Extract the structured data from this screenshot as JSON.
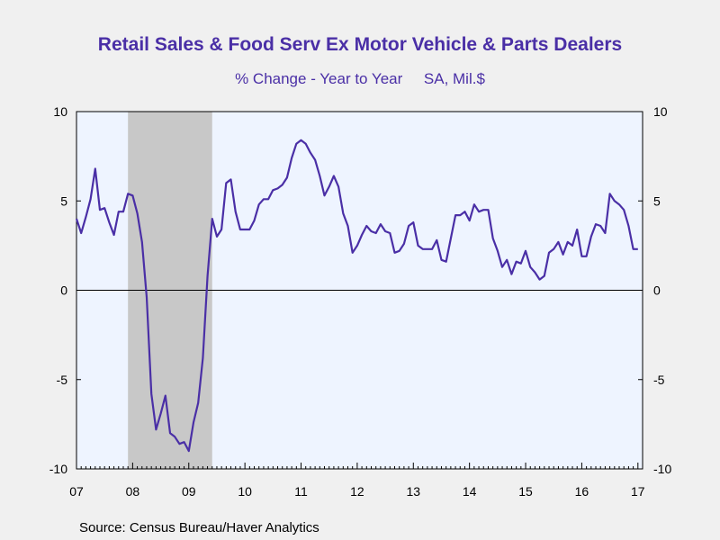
{
  "source": "Source:  Census Bureau/Haver Analytics",
  "colors": {
    "line": "#4a2fa6",
    "plot_bg": "#eef4ff",
    "recession": "#c8c8c8",
    "page_bg": "#f0f0f0"
  },
  "chart_data": {
    "type": "line",
    "title": "Retail Sales & Food Serv Ex Motor Vehicle & Parts Dealers",
    "subtitle": "% Change - Year to Year     SA, Mil.$",
    "xlabel": "",
    "ylabel": "",
    "ylim": [
      -10,
      10
    ],
    "yticks": [
      10,
      5,
      0,
      -5,
      -10
    ],
    "ytick_labels": [
      "10",
      "5",
      "0",
      "-5",
      "-10"
    ],
    "xlim": [
      "2007-01",
      "2017-02"
    ],
    "xtick_labels": [
      "07",
      "08",
      "09",
      "10",
      "11",
      "12",
      "13",
      "14",
      "15",
      "16",
      "17"
    ],
    "right_axis": true,
    "zero_line": true,
    "grid": false,
    "recession_shading": [
      {
        "start": "2007-12",
        "end": "2009-06"
      }
    ],
    "series": [
      {
        "x": [
          "2007-01",
          "2007-02",
          "2007-03",
          "2007-04",
          "2007-05",
          "2007-06",
          "2007-07",
          "2007-08",
          "2007-09",
          "2007-10",
          "2007-11",
          "2007-12",
          "2008-01",
          "2008-02",
          "2008-03",
          "2008-04",
          "2008-05",
          "2008-06",
          "2008-07",
          "2008-08",
          "2008-09",
          "2008-10",
          "2008-11",
          "2008-12",
          "2009-01",
          "2009-02",
          "2009-03",
          "2009-04",
          "2009-05",
          "2009-06",
          "2009-07",
          "2009-08",
          "2009-09",
          "2009-10",
          "2009-11",
          "2009-12",
          "2010-01",
          "2010-02",
          "2010-03",
          "2010-04",
          "2010-05",
          "2010-06",
          "2010-07",
          "2010-08",
          "2010-09",
          "2010-10",
          "2010-11",
          "2010-12",
          "2011-01",
          "2011-02",
          "2011-03",
          "2011-04",
          "2011-05",
          "2011-06",
          "2011-07",
          "2011-08",
          "2011-09",
          "2011-10",
          "2011-11",
          "2011-12",
          "2012-01",
          "2012-02",
          "2012-03",
          "2012-04",
          "2012-05",
          "2012-06",
          "2012-07",
          "2012-08",
          "2012-09",
          "2012-10",
          "2012-11",
          "2012-12",
          "2013-01",
          "2013-02",
          "2013-03",
          "2013-04",
          "2013-05",
          "2013-06",
          "2013-07",
          "2013-08",
          "2013-09",
          "2013-10",
          "2013-11",
          "2013-12",
          "2014-01",
          "2014-02",
          "2014-03",
          "2014-04",
          "2014-05",
          "2014-06",
          "2014-07",
          "2014-08",
          "2014-09",
          "2014-10",
          "2014-11",
          "2014-12",
          "2015-01",
          "2015-02",
          "2015-03",
          "2015-04",
          "2015-05",
          "2015-06",
          "2015-07",
          "2015-08",
          "2015-09",
          "2015-10",
          "2015-11",
          "2015-12",
          "2016-01",
          "2016-02",
          "2016-03",
          "2016-04",
          "2016-05",
          "2016-06",
          "2016-07",
          "2016-08",
          "2016-09",
          "2016-10",
          "2016-11",
          "2016-12",
          "2017-01"
        ],
        "values": [
          4.0,
          3.2,
          4.1,
          5.1,
          6.8,
          4.5,
          4.6,
          3.8,
          3.1,
          4.4,
          4.4,
          5.4,
          5.3,
          4.3,
          2.7,
          -0.4,
          -5.8,
          -7.8,
          -6.9,
          -5.9,
          -8.0,
          -8.2,
          -8.6,
          -8.5,
          -9.0,
          -7.4,
          -6.3,
          -3.8,
          0.8,
          4.0,
          3.0,
          3.4,
          6.0,
          6.2,
          4.4,
          3.4,
          3.4,
          3.4,
          3.9,
          4.8,
          5.1,
          5.1,
          5.6,
          5.7,
          5.9,
          6.3,
          7.4,
          8.2,
          8.4,
          8.2,
          7.7,
          7.3,
          6.4,
          5.3,
          5.8,
          6.4,
          5.8,
          4.3,
          3.6,
          2.1,
          2.5,
          3.1,
          3.6,
          3.3,
          3.2,
          3.7,
          3.3,
          3.2,
          2.1,
          2.2,
          2.6,
          3.6,
          3.8,
          2.5,
          2.3,
          2.3,
          2.3,
          2.8,
          1.7,
          1.6,
          2.9,
          4.2,
          4.2,
          4.4,
          3.9,
          4.8,
          4.4,
          4.5,
          4.5,
          2.9,
          2.2,
          1.3,
          1.7,
          0.9,
          1.6,
          1.5,
          2.2,
          1.3,
          1.0,
          0.6,
          0.8,
          2.1,
          2.3,
          2.7,
          2.0,
          2.7,
          2.5,
          3.4,
          1.9,
          1.9,
          3.0,
          3.7,
          3.6,
          3.2,
          5.4,
          5.0,
          4.8,
          4.5,
          3.6,
          2.3,
          2.3
        ]
      }
    ]
  }
}
